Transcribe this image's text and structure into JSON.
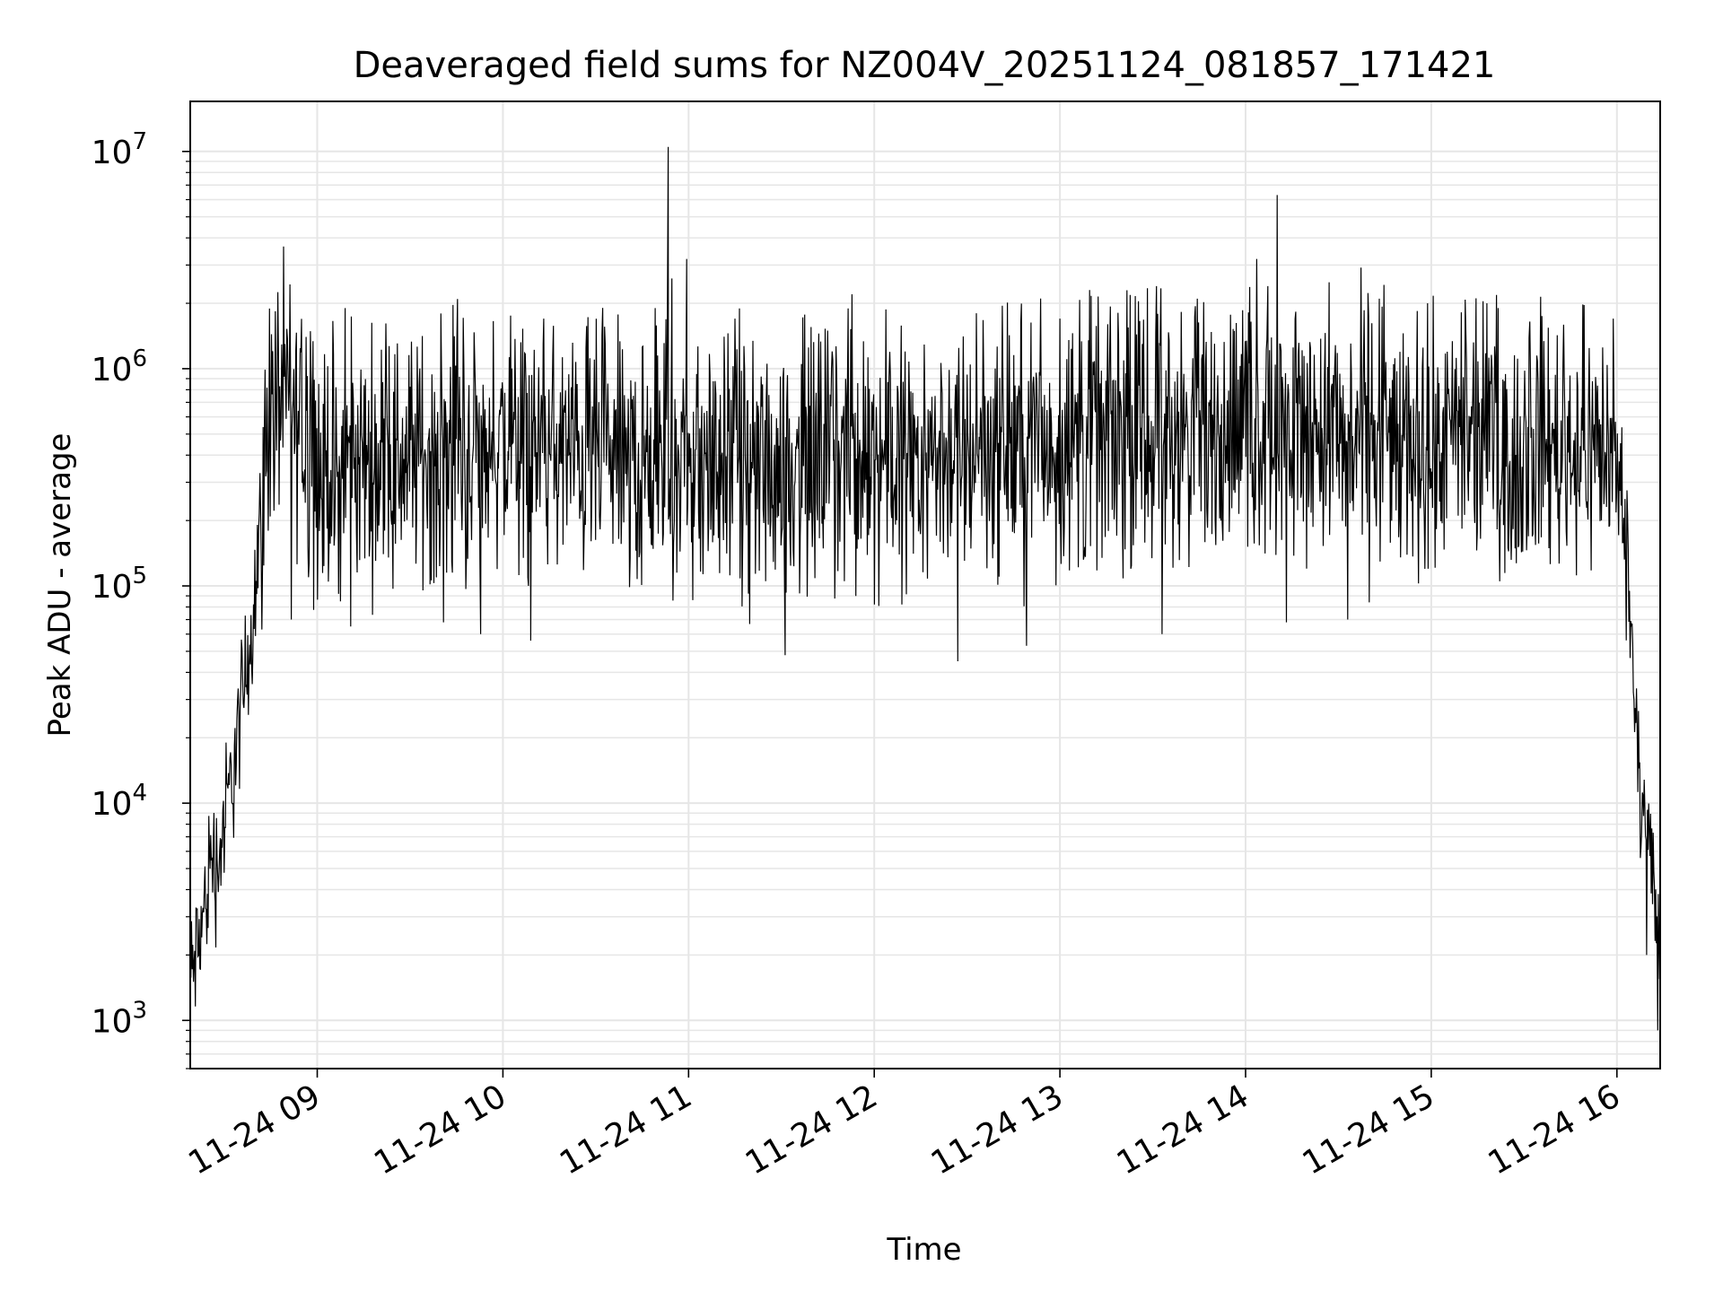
{
  "chart_data": {
    "type": "line",
    "title": "Deaveraged field sums for NZ004V_20251124_081857_171421",
    "xlabel": "Time",
    "ylabel": "Peak ADU - average",
    "yscale": "log",
    "ylim": [
      600,
      17000000
    ],
    "xlim_hours": [
      8.316,
      16.233
    ],
    "grid": true,
    "line_color": "#000000",
    "grid_color": "#e6e6e6",
    "x_ticks": [
      {
        "hour": 9,
        "label": "11-24 09"
      },
      {
        "hour": 10,
        "label": "11-24 10"
      },
      {
        "hour": 11,
        "label": "11-24 11"
      },
      {
        "hour": 12,
        "label": "11-24 12"
      },
      {
        "hour": 13,
        "label": "11-24 13"
      },
      {
        "hour": 14,
        "label": "11-24 14"
      },
      {
        "hour": 15,
        "label": "11-24 15"
      },
      {
        "hour": 16,
        "label": "11-24 16"
      }
    ],
    "y_ticks": [
      {
        "value": 1000,
        "base": "10",
        "exp": "3"
      },
      {
        "value": 10000,
        "base": "10",
        "exp": "4"
      },
      {
        "value": 100000,
        "base": "10",
        "exp": "5"
      },
      {
        "value": 1000000,
        "base": "10",
        "exp": "6"
      },
      {
        "value": 10000000,
        "base": "10",
        "exp": "7"
      }
    ],
    "series": [
      {
        "name": "Peak ADU - average",
        "typical_band": [
          150000,
          1200000
        ],
        "profile_hour_value": [
          [
            8.316,
            1500
          ],
          [
            8.35,
            2000
          ],
          [
            8.38,
            2800
          ],
          [
            8.4,
            3500
          ],
          [
            8.43,
            6000
          ],
          [
            8.46,
            5000
          ],
          [
            8.5,
            8000
          ],
          [
            8.55,
            15000
          ],
          [
            8.6,
            30000
          ],
          [
            8.65,
            70000
          ],
          [
            8.7,
            220000
          ],
          [
            8.75,
            600000
          ],
          [
            8.82,
            800000
          ],
          [
            9.0,
            350000
          ],
          [
            10.0,
            450000
          ],
          [
            11.0,
            350000
          ],
          [
            12.0,
            400000
          ],
          [
            13.0,
            450000
          ],
          [
            14.0,
            550000
          ],
          [
            15.0,
            450000
          ],
          [
            15.95,
            450000
          ],
          [
            16.02,
            300000
          ],
          [
            16.06,
            120000
          ],
          [
            16.09,
            40000
          ],
          [
            16.12,
            15000
          ],
          [
            16.16,
            8000
          ],
          [
            16.2,
            4000
          ],
          [
            16.233,
            2000
          ]
        ],
        "spikes_hour_value": [
          [
            8.86,
            3000000
          ],
          [
            8.94,
            1400000
          ],
          [
            9.15,
            1900000
          ],
          [
            10.22,
            1700000
          ],
          [
            10.82,
            1900000
          ],
          [
            10.89,
            10500000
          ],
          [
            10.91,
            2600000
          ],
          [
            10.99,
            3200000
          ],
          [
            11.25,
            1700000
          ],
          [
            11.88,
            2200000
          ],
          [
            12.55,
            1800000
          ],
          [
            13.0,
            1700000
          ],
          [
            13.16,
            2300000
          ],
          [
            13.52,
            2400000
          ],
          [
            13.74,
            2100000
          ],
          [
            14.06,
            3200000
          ],
          [
            14.12,
            2400000
          ],
          [
            14.17,
            6300000
          ],
          [
            14.45,
            2500000
          ],
          [
            14.72,
            2100000
          ],
          [
            14.98,
            2000000
          ],
          [
            15.36,
            1900000
          ],
          [
            15.98,
            1700000
          ]
        ],
        "dips_hour_value": [
          [
            8.86,
            70000
          ],
          [
            9.18,
            65000
          ],
          [
            9.68,
            68000
          ],
          [
            9.88,
            60000
          ],
          [
            10.15,
            56000
          ],
          [
            11.52,
            48000
          ],
          [
            12.45,
            45000
          ],
          [
            12.82,
            53000
          ],
          [
            13.55,
            60000
          ],
          [
            14.22,
            68000
          ],
          [
            14.55,
            70000
          ],
          [
            16.16,
            2000
          ],
          [
            16.22,
            900
          ]
        ]
      }
    ]
  }
}
